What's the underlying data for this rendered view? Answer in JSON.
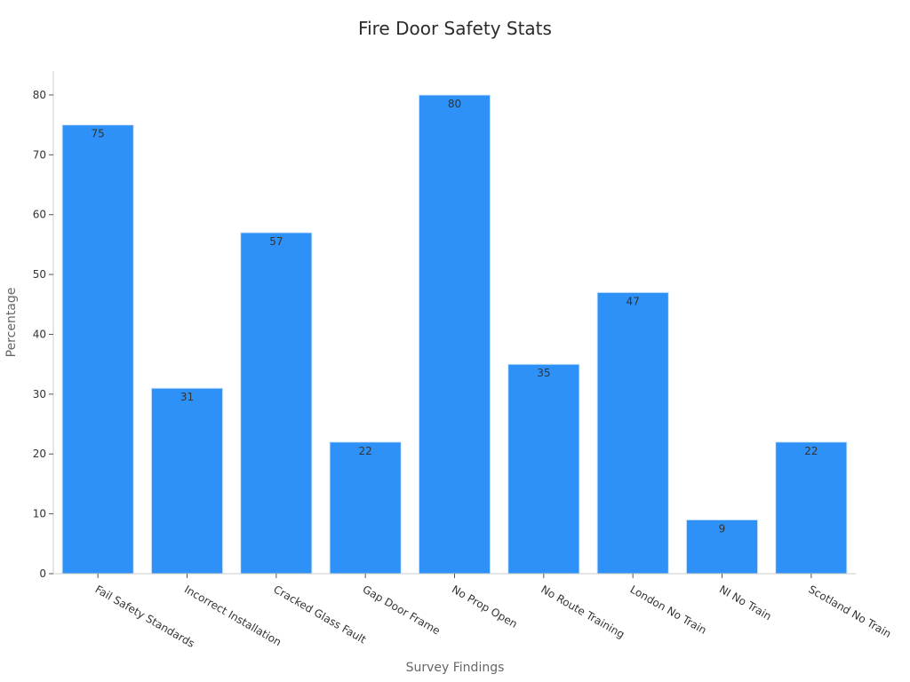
{
  "chart_data": {
    "type": "bar",
    "title": "Fire Door Safety Stats",
    "xlabel": "Survey Findings",
    "ylabel": "Percentage",
    "categories": [
      "Fail Safety Standards",
      "Incorrect Installation",
      "Cracked Glass Fault",
      "Gap Door Frame",
      "No Prop Open",
      "No Route Training",
      "London No Train",
      "NI No Train",
      "Scotland No Train"
    ],
    "values": [
      75,
      31,
      57,
      22,
      80,
      35,
      47,
      9,
      22
    ],
    "ylim": [
      0,
      84
    ],
    "yticks": [
      0,
      10,
      20,
      30,
      40,
      50,
      60,
      70,
      80
    ],
    "grid": false,
    "bar_color": "#2e91f7",
    "axis_color": "#cccccc",
    "text_color": "#333333",
    "label_color": "#666666"
  }
}
